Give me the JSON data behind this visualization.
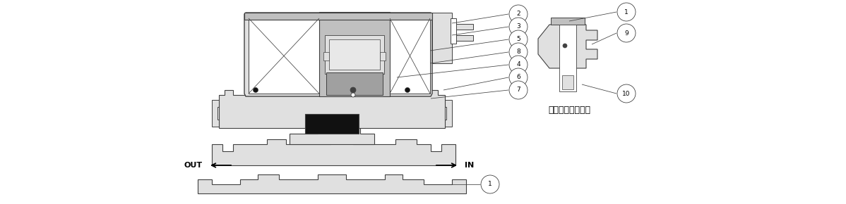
{
  "bg_color": "#ffffff",
  "lc": "#404040",
  "fl": "#e0e0e0",
  "fm": "#c0c0c0",
  "fd": "#a0a0a0",
  "fb": "#111111",
  "text_caption": "ワンタッチ管継手",
  "fig_width": 11.98,
  "fig_height": 2.9
}
